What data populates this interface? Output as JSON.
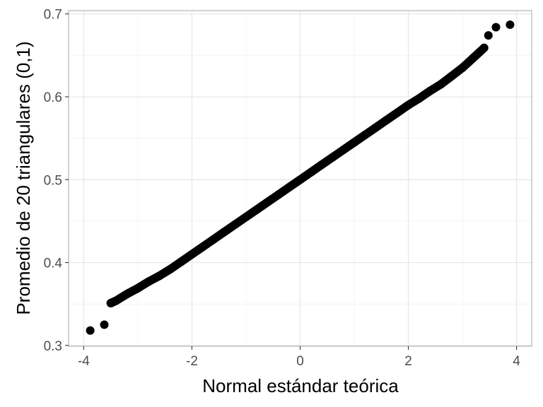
{
  "chart_data": {
    "type": "scatter",
    "title": "",
    "xlabel": "Normal estándar teórica",
    "ylabel": "Promedio de 20 triangulares (0,1)",
    "xlim": [
      -4.28,
      4.28
    ],
    "ylim": [
      0.299,
      0.704
    ],
    "xticks": [
      -4,
      -2,
      0,
      2,
      4
    ],
    "xtick_labels": [
      "-4",
      "-2",
      "0",
      "2",
      "4"
    ],
    "yticks": [
      0.3,
      0.4,
      0.5,
      0.6,
      0.7
    ],
    "ytick_labels": [
      "0.3",
      "0.4",
      "0.5",
      "0.6",
      "0.7"
    ],
    "grid": true,
    "point_color": "#000000",
    "x": [
      -3.88,
      -3.62,
      -3.5,
      -3.4,
      -3.2,
      -3.0,
      -2.8,
      -2.6,
      -2.4,
      -2.2,
      -2.0,
      -1.8,
      -1.6,
      -1.4,
      -1.2,
      -1.0,
      -0.8,
      -0.6,
      -0.4,
      -0.2,
      0,
      0.2,
      0.4,
      0.6,
      0.8,
      1.0,
      1.2,
      1.4,
      1.6,
      1.8,
      2.0,
      2.2,
      2.4,
      2.6,
      2.8,
      3.0,
      3.2,
      3.4,
      3.48,
      3.62,
      3.88
    ],
    "y": [
      0.318,
      0.325,
      0.351,
      0.354,
      0.362,
      0.369,
      0.377,
      0.384,
      0.392,
      0.401,
      0.41,
      0.419,
      0.428,
      0.437,
      0.446,
      0.455,
      0.464,
      0.473,
      0.482,
      0.491,
      0.5,
      0.509,
      0.518,
      0.527,
      0.536,
      0.545,
      0.554,
      0.563,
      0.572,
      0.581,
      0.59,
      0.598,
      0.607,
      0.615,
      0.625,
      0.635,
      0.647,
      0.659,
      0.674,
      0.684,
      0.687
    ]
  }
}
